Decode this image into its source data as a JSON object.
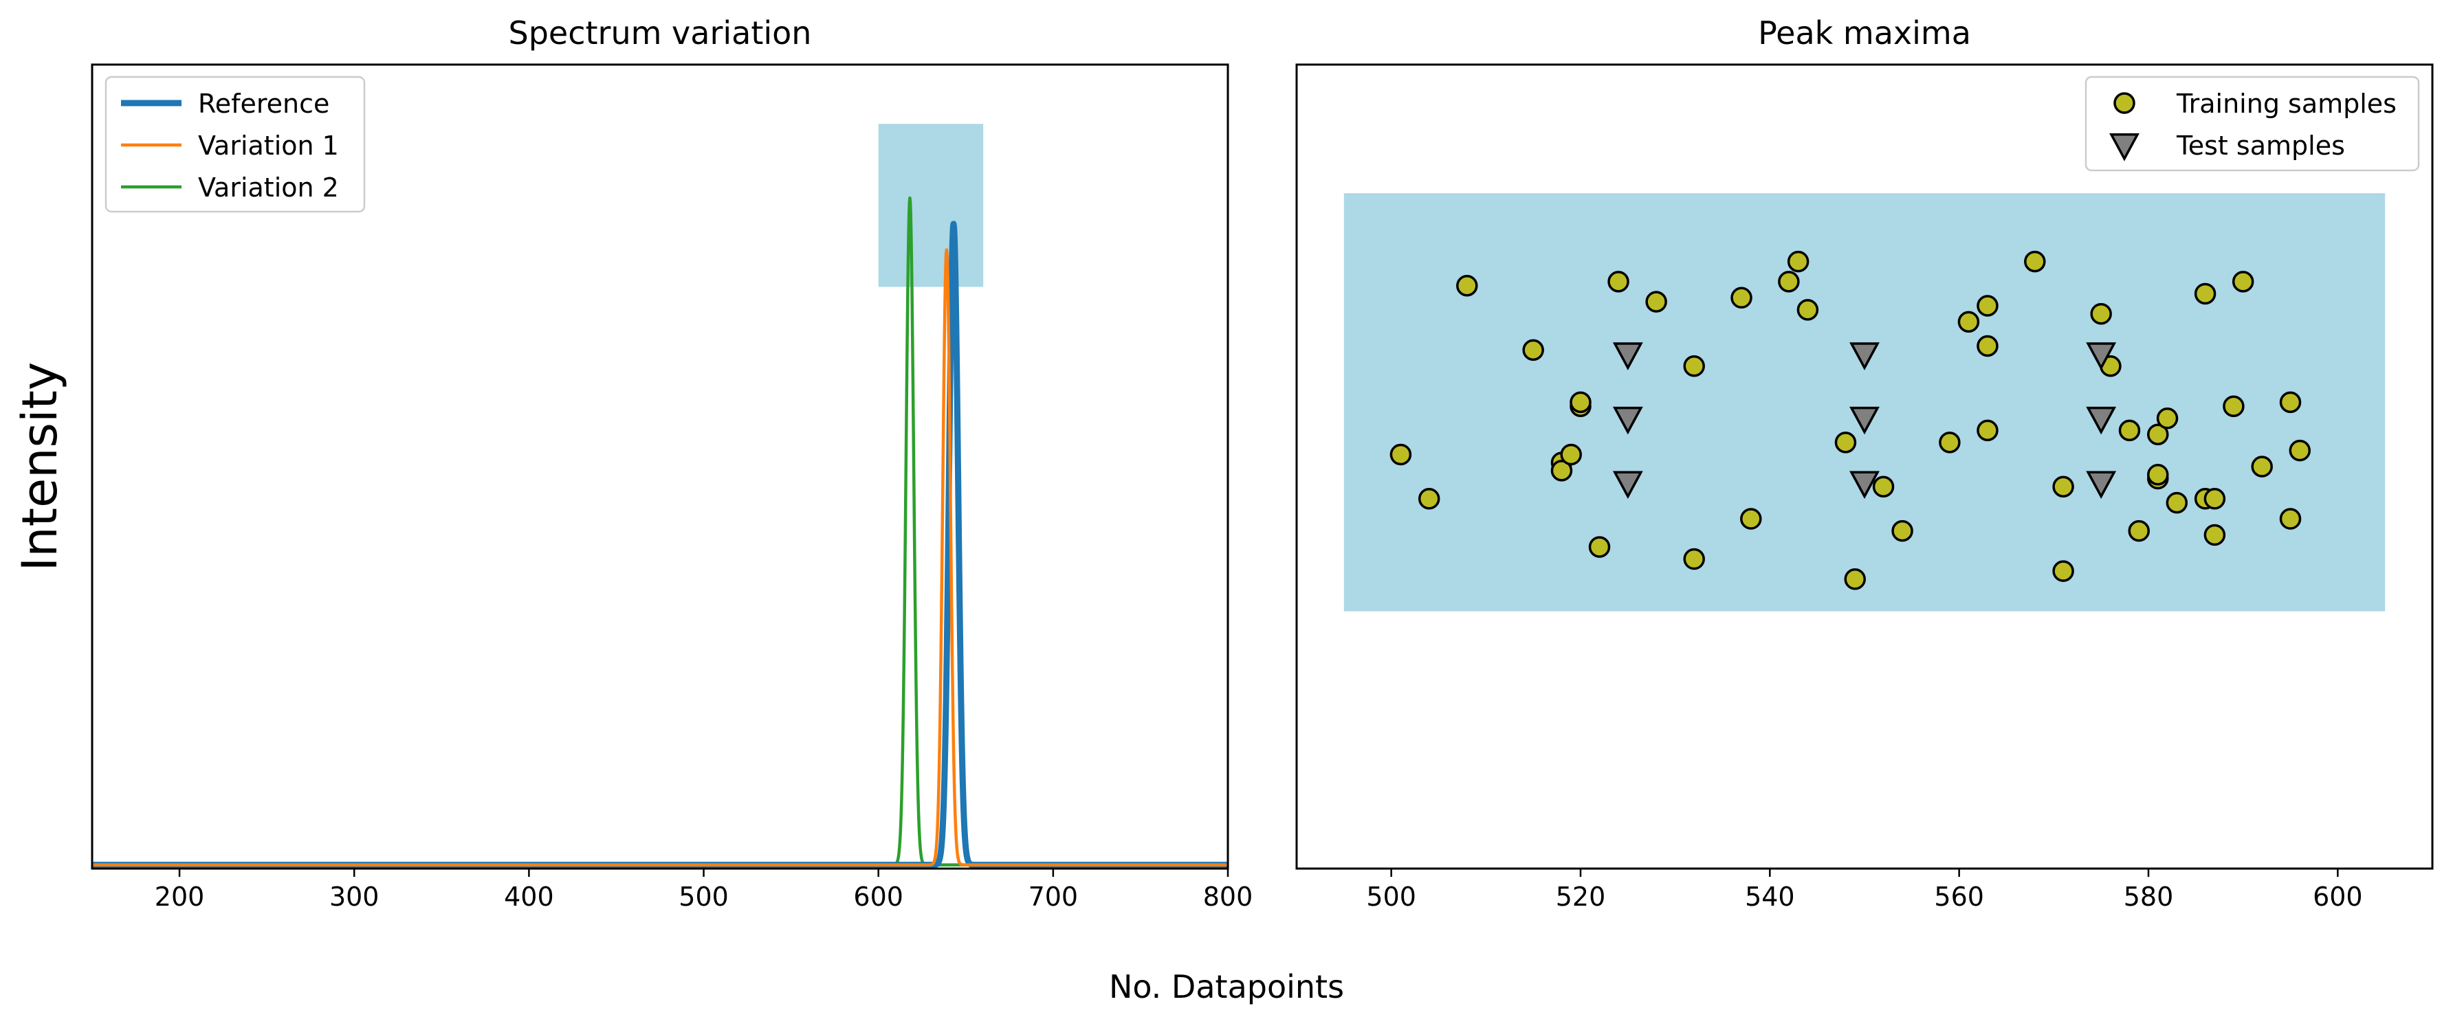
{
  "figure": {
    "ylabel": "Intensity",
    "xlabel": "No. Datapoints"
  },
  "chart_data": [
    {
      "type": "line",
      "title": "Spectrum variation",
      "xlabel": "",
      "ylabel": "",
      "xlim": [
        150,
        800
      ],
      "ylim": [
        -0.005,
        1.08
      ],
      "x_ticks": [
        200,
        300,
        400,
        500,
        600,
        700,
        800
      ],
      "y_ticks": [],
      "legend_position": "top-left",
      "grid": false,
      "highlight_region": {
        "x": [
          600,
          660
        ],
        "y": [
          0.78,
          1.0
        ],
        "color": "#add8e6"
      },
      "series": [
        {
          "name": "Reference",
          "color": "#1f77b4",
          "peak_center": 643,
          "peak_height": 0.865,
          "peak_sigma": 2.6,
          "line_width": "thick"
        },
        {
          "name": "Variation 1",
          "color": "#ff7f0e",
          "peak_center": 639,
          "peak_height": 0.83,
          "peak_sigma": 2.2,
          "line_width": "normal"
        },
        {
          "name": "Variation 2",
          "color": "#2ca02c",
          "peak_center": 618,
          "peak_height": 0.9,
          "peak_sigma": 2.2,
          "line_width": "normal"
        }
      ]
    },
    {
      "type": "scatter",
      "title": "Peak maxima",
      "xlabel": "",
      "ylabel": "",
      "xlim": [
        490,
        610
      ],
      "ylim": [
        0,
        100
      ],
      "x_ticks": [
        500,
        520,
        540,
        560,
        580,
        600
      ],
      "y_ticks": [],
      "legend_position": "top-right",
      "grid": false,
      "highlight_region": {
        "x": [
          495,
          605
        ],
        "y": [
          32,
          84
        ],
        "color": "#add8e6"
      },
      "series": [
        {
          "name": "Training samples",
          "marker": "circle",
          "color": "#bcbd22",
          "points": [
            [
              501,
              51.5
            ],
            [
              504,
              46
            ],
            [
              508,
              72.5
            ],
            [
              515,
              64.5
            ],
            [
              518,
              50.5
            ],
            [
              518,
              49.5
            ],
            [
              519,
              51.5
            ],
            [
              520,
              57.5
            ],
            [
              520,
              58
            ],
            [
              522,
              40
            ],
            [
              524,
              73
            ],
            [
              528,
              70.5
            ],
            [
              532,
              62.5
            ],
            [
              532,
              38.5
            ],
            [
              537,
              71
            ],
            [
              538,
              43.5
            ],
            [
              542,
              73
            ],
            [
              543,
              75.5
            ],
            [
              544,
              69.5
            ],
            [
              548,
              53
            ],
            [
              549,
              36
            ],
            [
              552,
              47.5
            ],
            [
              554,
              42
            ],
            [
              559,
              53
            ],
            [
              561,
              68
            ],
            [
              563,
              70
            ],
            [
              563,
              65
            ],
            [
              563,
              54.5
            ],
            [
              568,
              75.5
            ],
            [
              571,
              47.5
            ],
            [
              571,
              37
            ],
            [
              575,
              69
            ],
            [
              576,
              62.5
            ],
            [
              578,
              54.5
            ],
            [
              579,
              42
            ],
            [
              581,
              54
            ],
            [
              581,
              48.5
            ],
            [
              581,
              49
            ],
            [
              582,
              56
            ],
            [
              583,
              45.5
            ],
            [
              586,
              71.5
            ],
            [
              586,
              46
            ],
            [
              587,
              46
            ],
            [
              587,
              41.5
            ],
            [
              589,
              57.5
            ],
            [
              590,
              73
            ],
            [
              592,
              50
            ],
            [
              595,
              58
            ],
            [
              595,
              43.5
            ],
            [
              596,
              52
            ]
          ]
        },
        {
          "name": "Test samples",
          "marker": "triangle-down",
          "color": "#808080",
          "points": [
            [
              525,
              64
            ],
            [
              525,
              56
            ],
            [
              525,
              48
            ],
            [
              550,
              64
            ],
            [
              550,
              56
            ],
            [
              550,
              48
            ],
            [
              575,
              64
            ],
            [
              575,
              56
            ],
            [
              575,
              48
            ]
          ]
        }
      ]
    }
  ]
}
